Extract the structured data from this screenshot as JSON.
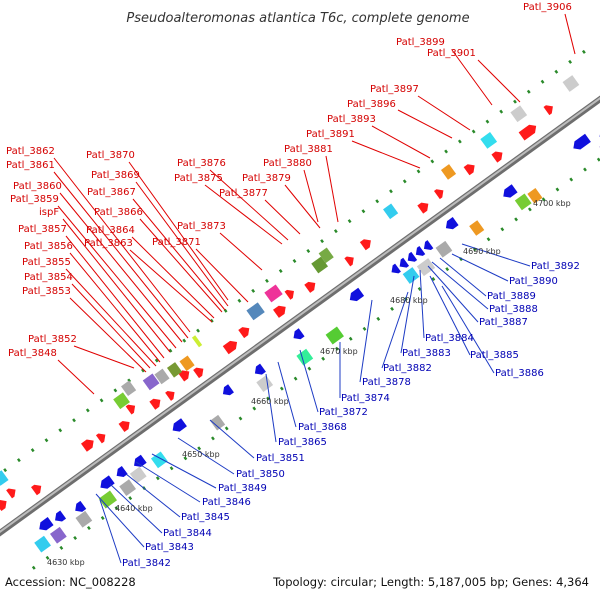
{
  "title": "Pseudoalteromonas atlantica T6c, complete genome",
  "footer": {
    "accession": "Accession: NC_008228",
    "summary": "Topology: circular; Length: 5,187,005 bp; Genes: 4,364"
  },
  "colors": {
    "forward_label": "#d40000",
    "reverse_label": "#0000b4",
    "forward_gene": "#ff1a1a",
    "reverse_gene": "#1010dd",
    "backbone": "#8a8a8a",
    "tick": "#2a8a2a"
  },
  "ticks": [
    {
      "label": "4630 kbp"
    },
    {
      "label": "4640 kbp"
    },
    {
      "label": "4650 kbp"
    },
    {
      "label": "4660 kbp"
    },
    {
      "label": "4670 kbp"
    },
    {
      "label": "4680 kbp"
    },
    {
      "label": "4690 kbp"
    },
    {
      "label": "4700 kbp"
    }
  ],
  "forward_labels": [
    {
      "text": "Patl_3906"
    },
    {
      "text": "Patl_3899"
    },
    {
      "text": "Patl_3901"
    },
    {
      "text": "Patl_3897"
    },
    {
      "text": "Patl_3896"
    },
    {
      "text": "Patl_3893"
    },
    {
      "text": "Patl_3891"
    },
    {
      "text": "Patl_3881"
    },
    {
      "text": "Patl_3880"
    },
    {
      "text": "Patl_3876"
    },
    {
      "text": "Patl_3879"
    },
    {
      "text": "Patl_3875"
    },
    {
      "text": "Patl_3877"
    },
    {
      "text": "Patl_3870"
    },
    {
      "text": "Patl_3869"
    },
    {
      "text": "Patl_3867"
    },
    {
      "text": "Patl_3866"
    },
    {
      "text": "Patl_3873"
    },
    {
      "text": "Patl_3864"
    },
    {
      "text": "Patl_3871"
    },
    {
      "text": "Patl_3863"
    },
    {
      "text": "Patl_3862"
    },
    {
      "text": "Patl_3861"
    },
    {
      "text": "Patl_3860"
    },
    {
      "text": "Patl_3859"
    },
    {
      "text": "ispF"
    },
    {
      "text": "Patl_3857"
    },
    {
      "text": "Patl_3856"
    },
    {
      "text": "Patl_3855"
    },
    {
      "text": "Patl_3854"
    },
    {
      "text": "Patl_3853"
    },
    {
      "text": "Patl_3852"
    },
    {
      "text": "Patl_3848"
    }
  ],
  "reverse_labels": [
    {
      "text": "Patl_3892"
    },
    {
      "text": "Patl_3890"
    },
    {
      "text": "Patl_3889"
    },
    {
      "text": "Patl_3888"
    },
    {
      "text": "Patl_3887"
    },
    {
      "text": "Patl_3884"
    },
    {
      "text": "Patl_3885"
    },
    {
      "text": "Patl_3883"
    },
    {
      "text": "Patl_3882"
    },
    {
      "text": "Patl_3886"
    },
    {
      "text": "Patl_3878"
    },
    {
      "text": "Patl_3874"
    },
    {
      "text": "Patl_3872"
    },
    {
      "text": "Patl_3868"
    },
    {
      "text": "Patl_3865"
    },
    {
      "text": "Patl_3851"
    },
    {
      "text": "Patl_3850"
    },
    {
      "text": "Patl_3849"
    },
    {
      "text": "Patl_3846"
    },
    {
      "text": "Patl_3845"
    },
    {
      "text": "Patl_3844"
    },
    {
      "text": "Patl_3843"
    },
    {
      "text": "Patl_3842"
    }
  ]
}
